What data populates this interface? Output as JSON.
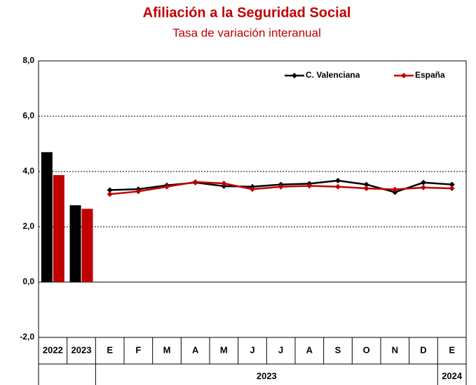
{
  "chart_data": {
    "type": "combo",
    "title": "Afiliación a la Seguridad Social",
    "subtitle": "Tasa de variación interanual",
    "title_color": "#c00000",
    "annual_categories": [
      "2022",
      "2023"
    ],
    "month_groups": [
      {
        "label": "2023",
        "categories": [
          "E",
          "F",
          "M",
          "A",
          "M",
          "J",
          "J",
          "A",
          "S",
          "O",
          "N",
          "D"
        ]
      },
      {
        "label": "2024",
        "categories": [
          "E"
        ]
      }
    ],
    "series": [
      {
        "name": "C. Valenciana",
        "color": "#000000",
        "annual": [
          4.7,
          2.78
        ],
        "monthly": [
          3.33,
          3.36,
          3.5,
          3.6,
          3.47,
          3.45,
          3.53,
          3.56,
          3.67,
          3.53,
          3.25,
          3.6,
          3.53
        ]
      },
      {
        "name": "España",
        "color": "#c00000",
        "annual": [
          3.87,
          2.65
        ],
        "monthly": [
          3.18,
          3.28,
          3.45,
          3.62,
          3.57,
          3.36,
          3.45,
          3.48,
          3.45,
          3.39,
          3.35,
          3.42,
          3.39
        ]
      }
    ],
    "ylim": [
      -2,
      8
    ],
    "yticks": [
      {
        "value": -2,
        "label": "-2,0"
      },
      {
        "value": 0,
        "label": "0,0"
      },
      {
        "value": 2,
        "label": "2,0"
      },
      {
        "value": 4,
        "label": "4,0"
      },
      {
        "value": 6,
        "label": "6,0"
      },
      {
        "value": 8,
        "label": "8,0"
      }
    ],
    "grid": true,
    "legend": "top-right"
  }
}
